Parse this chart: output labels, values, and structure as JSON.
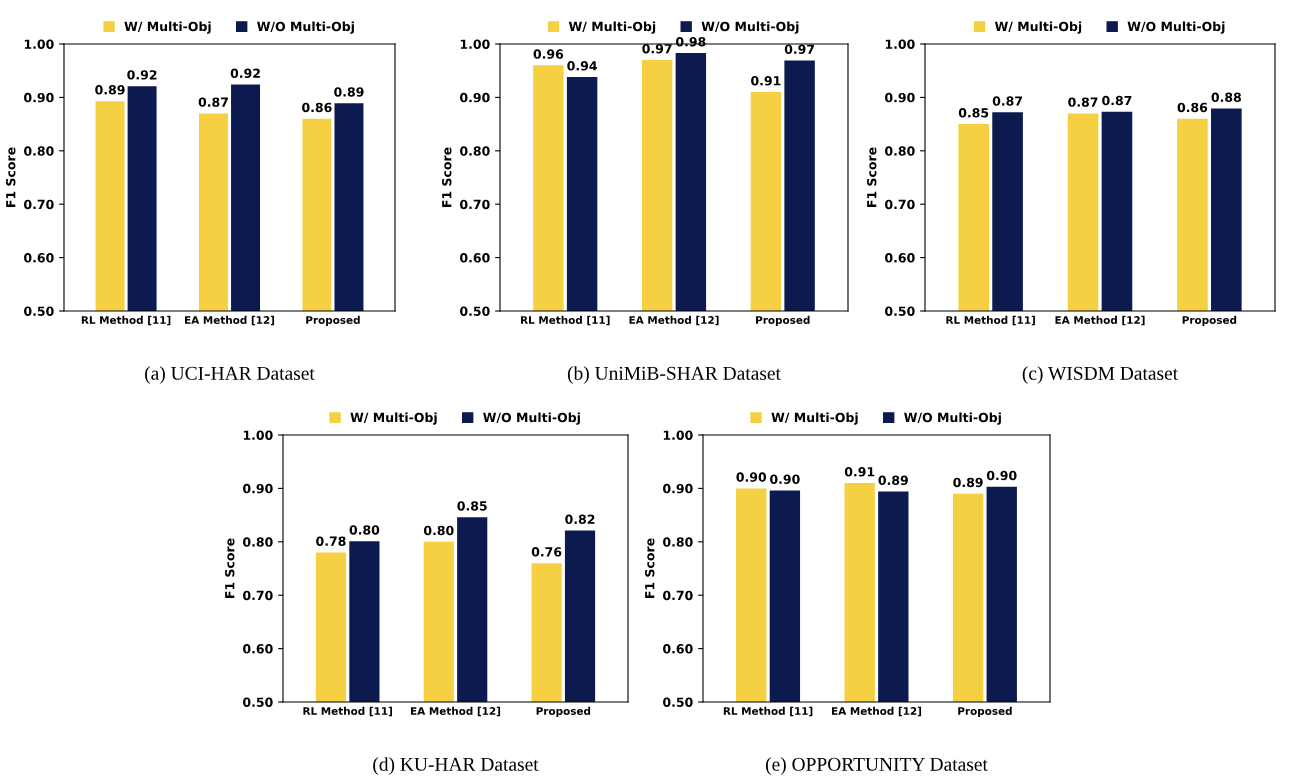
{
  "chart_data": [
    {
      "type": "bar",
      "ylabel": "F1 Score",
      "categories": [
        "RL Method [11]",
        "EA Method [12]",
        "Proposed"
      ],
      "series": [
        {
          "name": "W/ Multi-Obj",
          "color": "#f5d042",
          "values": [
            0.893,
            0.87,
            0.86
          ],
          "value_labels": [
            "0.89",
            "0.87",
            "0.86"
          ]
        },
        {
          "name": "W/O Multi-Obj",
          "color": "#0d1a4f",
          "values": [
            0.921,
            0.924,
            0.889
          ],
          "value_labels": [
            "0.92",
            "0.92",
            "0.89"
          ]
        }
      ],
      "ylim": [
        0.5,
        1.0
      ],
      "yticks": [
        {
          "value": 0.5,
          "label": "0.50"
        },
        {
          "value": 0.6,
          "label": "0.60"
        },
        {
          "value": 0.7,
          "label": "0.70"
        },
        {
          "value": 0.8,
          "label": "0.80"
        },
        {
          "value": 0.9,
          "label": "0.90"
        },
        {
          "value": 1.0,
          "label": "1.00"
        }
      ],
      "legend": "top",
      "grid": false,
      "annotations": [
        "(a) UCI-HAR Dataset"
      ]
    },
    {
      "type": "bar",
      "ylabel": "F1 Score",
      "categories": [
        "RL Method [11]",
        "EA Method [12]",
        "Proposed"
      ],
      "series": [
        {
          "name": "W/ Multi-Obj",
          "color": "#f5d042",
          "values": [
            0.96,
            0.97,
            0.91
          ],
          "value_labels": [
            "0.96",
            "0.97",
            "0.91"
          ]
        },
        {
          "name": "W/O Multi-Obj",
          "color": "#0d1a4f",
          "values": [
            0.938,
            0.983,
            0.969
          ],
          "value_labels": [
            "0.94",
            "0.98",
            "0.97"
          ]
        }
      ],
      "ylim": [
        0.5,
        1.0
      ],
      "yticks": [
        {
          "value": 0.5,
          "label": "0.50"
        },
        {
          "value": 0.6,
          "label": "0.60"
        },
        {
          "value": 0.7,
          "label": "0.70"
        },
        {
          "value": 0.8,
          "label": "0.80"
        },
        {
          "value": 0.9,
          "label": "0.90"
        },
        {
          "value": 1.0,
          "label": "1.00"
        }
      ],
      "legend": "top",
      "grid": false,
      "annotations": [
        "(b) UniMiB-SHAR Dataset"
      ]
    },
    {
      "type": "bar",
      "ylabel": "F1 Score",
      "categories": [
        "RL Method [11]",
        "EA Method [12]",
        "Proposed"
      ],
      "series": [
        {
          "name": "W/ Multi-Obj",
          "color": "#f5d042",
          "values": [
            0.85,
            0.87,
            0.86
          ],
          "value_labels": [
            "0.85",
            "0.87",
            "0.86"
          ]
        },
        {
          "name": "W/O Multi-Obj",
          "color": "#0d1a4f",
          "values": [
            0.872,
            0.873,
            0.879
          ],
          "value_labels": [
            "0.87",
            "0.87",
            "0.88"
          ]
        }
      ],
      "ylim": [
        0.5,
        1.0
      ],
      "yticks": [
        {
          "value": 0.5,
          "label": "0.50"
        },
        {
          "value": 0.6,
          "label": "0.60"
        },
        {
          "value": 0.7,
          "label": "0.70"
        },
        {
          "value": 0.8,
          "label": "0.80"
        },
        {
          "value": 0.9,
          "label": "0.90"
        },
        {
          "value": 1.0,
          "label": "1.00"
        }
      ],
      "legend": "top",
      "grid": false,
      "annotations": [
        "(c) WISDM Dataset"
      ]
    },
    {
      "type": "bar",
      "ylabel": "F1 Score",
      "categories": [
        "RL Method [11]",
        "EA Method [12]",
        "Proposed"
      ],
      "series": [
        {
          "name": "W/ Multi-Obj",
          "color": "#f5d042",
          "values": [
            0.78,
            0.8,
            0.76
          ],
          "value_labels": [
            "0.78",
            "0.80",
            "0.76"
          ]
        },
        {
          "name": "W/O Multi-Obj",
          "color": "#0d1a4f",
          "values": [
            0.801,
            0.846,
            0.821
          ],
          "value_labels": [
            "0.80",
            "0.85",
            "0.82"
          ]
        }
      ],
      "ylim": [
        0.5,
        1.0
      ],
      "yticks": [
        {
          "value": 0.5,
          "label": "0.50"
        },
        {
          "value": 0.6,
          "label": "0.60"
        },
        {
          "value": 0.7,
          "label": "0.70"
        },
        {
          "value": 0.8,
          "label": "0.80"
        },
        {
          "value": 0.9,
          "label": "0.90"
        },
        {
          "value": 1.0,
          "label": "1.00"
        }
      ],
      "legend": "top",
      "grid": false,
      "annotations": [
        "(d) KU-HAR Dataset"
      ]
    },
    {
      "type": "bar",
      "ylabel": "F1 Score",
      "categories": [
        "RL Method [11]",
        "EA Method [12]",
        "Proposed"
      ],
      "series": [
        {
          "name": "W/ Multi-Obj",
          "color": "#f5d042",
          "values": [
            0.9,
            0.91,
            0.89
          ],
          "value_labels": [
            "0.90",
            "0.91",
            "0.89"
          ]
        },
        {
          "name": "W/O Multi-Obj",
          "color": "#0d1a4f",
          "values": [
            0.896,
            0.894,
            0.903
          ],
          "value_labels": [
            "0.90",
            "0.89",
            "0.90"
          ]
        }
      ],
      "ylim": [
        0.5,
        1.0
      ],
      "yticks": [
        {
          "value": 0.5,
          "label": "0.50"
        },
        {
          "value": 0.6,
          "label": "0.60"
        },
        {
          "value": 0.7,
          "label": "0.70"
        },
        {
          "value": 0.8,
          "label": "0.80"
        },
        {
          "value": 0.9,
          "label": "0.90"
        },
        {
          "value": 1.0,
          "label": "1.00"
        }
      ],
      "legend": "top",
      "grid": false,
      "annotations": [
        "(e) OPPORTUNITY Dataset"
      ]
    }
  ]
}
